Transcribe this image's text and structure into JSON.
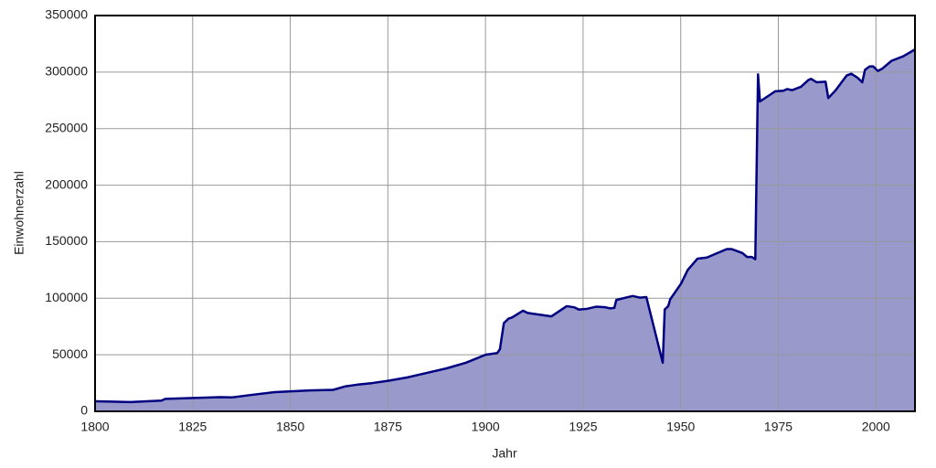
{
  "chart_data": {
    "type": "area",
    "x_label": "Jahr",
    "y_label": "Einwohnerzahl",
    "x": [
      1800,
      1809,
      1817,
      1818,
      1832,
      1835,
      1840,
      1846,
      1849,
      1855,
      1861,
      1864,
      1867,
      1871,
      1875,
      1880,
      1885,
      1890,
      1895,
      1900,
      1903,
      1903.7,
      1904.7,
      1905.9,
      1906.8,
      1909.6,
      1910.8,
      1916.9,
      1920.8,
      1922.7,
      1923.9,
      1925.8,
      1928.3,
      1930.7,
      1932,
      1933,
      1933.5,
      1937.7,
      1939.6,
      1941.2,
      1945.4,
      1945.9,
      1946.8,
      1947.3,
      1950.1,
      1951.8,
      1954.3,
      1956.7,
      1961.8,
      1963,
      1965.8,
      1967,
      1968.2,
      1969.1,
      1969.8,
      1970.3,
      1974.2,
      1976.3,
      1977.3,
      1978.5,
      1980.8,
      1982.7,
      1983.4,
      1984.8,
      1987.1,
      1987.8,
      1989.7,
      1992.5,
      1993.7,
      1995.3,
      1996.5,
      1997.2,
      1998.4,
      1999.3,
      2000.5,
      2001.6,
      2004,
      2007,
      2010
    ],
    "values": [
      8900,
      8200,
      9500,
      11000,
      12500,
      12300,
      14500,
      17000,
      17500,
      18500,
      19000,
      22000,
      23500,
      25000,
      27000,
      30000,
      34000,
      38000,
      43000,
      50000,
      51500,
      55000,
      78000,
      82000,
      83000,
      89000,
      87000,
      84000,
      93000,
      92000,
      90000,
      90500,
      92500,
      92000,
      91000,
      91500,
      98500,
      102000,
      100500,
      101000,
      43000,
      90000,
      93000,
      99000,
      113000,
      125000,
      135000,
      136000,
      143500,
      143500,
      140000,
      136500,
      136500,
      134500,
      298000,
      274000,
      283000,
      283500,
      285000,
      284000,
      287000,
      293000,
      294000,
      291000,
      291500,
      277000,
      284000,
      297000,
      298500,
      295000,
      291000,
      302000,
      305000,
      305000,
      301000,
      303000,
      310000,
      314000,
      320000
    ],
    "color": "#9999cc",
    "line_color": "#000080",
    "xlim": [
      1800,
      2010
    ],
    "xticks": [
      1800,
      1825,
      1850,
      1875,
      1900,
      1925,
      1950,
      1975,
      2000
    ],
    "ylim": [
      0,
      350000
    ],
    "yticks": [
      0,
      50000,
      100000,
      150000,
      200000,
      250000,
      300000,
      350000
    ],
    "grid": true
  }
}
